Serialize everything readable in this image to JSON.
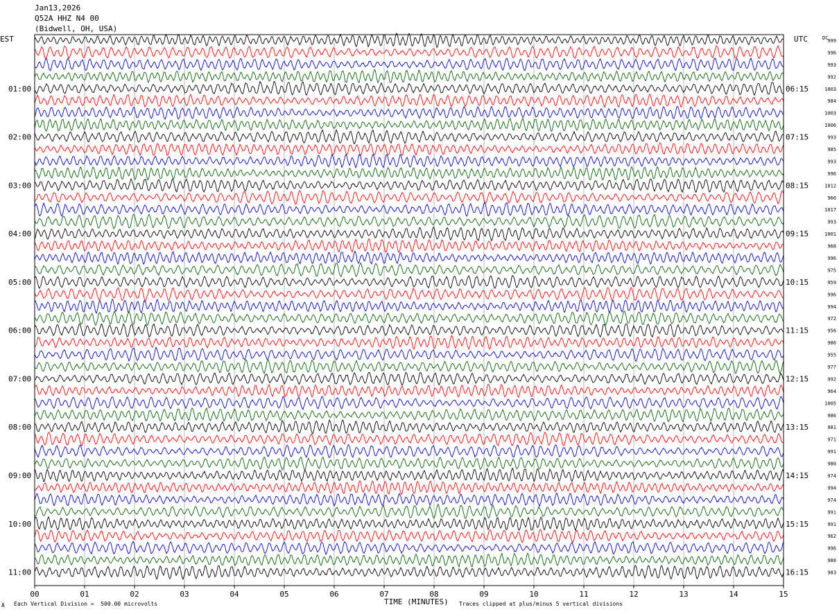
{
  "header": {
    "date": "Jan13,2026",
    "station": "Q52A HHZ N4 00",
    "location": "(Bidwell, OH, USA)"
  },
  "left_tz": "EST",
  "right_tz": "UTC",
  "dc_label": "DC",
  "footer": {
    "scale": "Each Vertical Division =  500.00 microvolts",
    "clip": "Traces clipped at plus/minus 5 vertical divisions",
    "corner": "A"
  },
  "colors": {
    "trace_cycle": [
      "#000000",
      "#ff0000",
      "#0000cc",
      "#006400"
    ],
    "grid": "#888888"
  },
  "chart_data": {
    "type": "line",
    "xlabel": "TIME (MINUTES)",
    "xlim": [
      0,
      15
    ],
    "x_ticks": [
      "00",
      "01",
      "02",
      "03",
      "04",
      "05",
      "06",
      "07",
      "08",
      "09",
      "10",
      "11",
      "12",
      "13",
      "14",
      "15"
    ],
    "left_hour_labels": [
      "01:00",
      "02:00",
      "03:00",
      "04:00",
      "05:00",
      "06:00",
      "07:00",
      "08:00",
      "09:00",
      "10:00",
      "11:00"
    ],
    "right_hour_labels": [
      "06:15",
      "07:15",
      "08:15",
      "09:15",
      "10:15",
      "11:15",
      "12:15",
      "13:15",
      "14:15",
      "15:15",
      "16:15"
    ],
    "dc_offsets": [
      999,
      996,
      993,
      992,
      1003,
      984,
      1003,
      1006,
      993,
      985,
      993,
      996,
      1012,
      966,
      1017,
      993,
      1001,
      968,
      996,
      975,
      959,
      996,
      994,
      972,
      956,
      986,
      955,
      977,
      992,
      964,
      1005,
      986,
      981,
      971,
      991,
      980,
      974,
      994,
      974,
      991,
      991,
      962,
      996,
      988,
      983
    ]
  }
}
